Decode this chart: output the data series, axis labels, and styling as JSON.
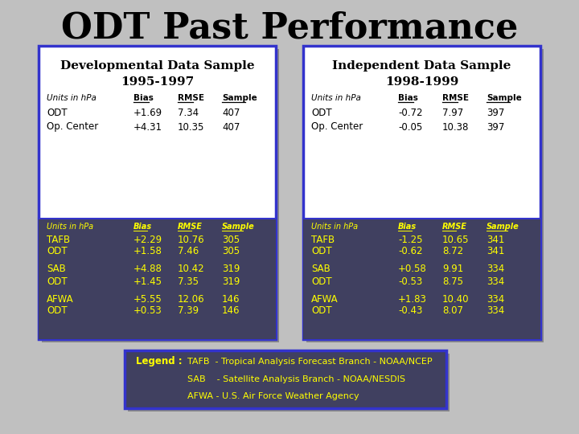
{
  "title": "ODT Past Performance",
  "title_fontsize": 32,
  "bg_color": "#c0c0c0",
  "box_bg_white": "#ffffff",
  "box_bg_dark": "#404060",
  "box_border": "#3333cc",
  "box_shadow": "#888888",
  "yellow_text": "#ffff00",
  "black_text": "#000000",
  "dev_title1": "Developmental Data Sample",
  "dev_title2": "1995-1997",
  "ind_title1": "Independent Data Sample",
  "ind_title2": "1998-1999",
  "dev_top": {
    "headers": [
      "Units in hPa",
      "Bias",
      "RMSE",
      "Sample"
    ],
    "rows": [
      [
        "ODT",
        "+1.69",
        "7.34",
        "407"
      ],
      [
        "Op. Center",
        "+4.31",
        "10.35",
        "407"
      ]
    ]
  },
  "dev_bot": {
    "headers": [
      "Units in hPa",
      "Bias",
      "RMSE",
      "Sample"
    ],
    "rows": [
      [
        "TAFB",
        "+2.29",
        "10.76",
        "305"
      ],
      [
        "ODT",
        "+1.58",
        "7.46",
        "305"
      ],
      [
        "SAB",
        "+4.88",
        "10.42",
        "319"
      ],
      [
        "ODT",
        "+1.45",
        "7.35",
        "319"
      ],
      [
        "AFWA",
        "+5.55",
        "12.06",
        "146"
      ],
      [
        "ODT",
        "+0.53",
        "7.39",
        "146"
      ]
    ]
  },
  "ind_top": {
    "headers": [
      "Units in hPa",
      "Bias",
      "RMSE",
      "Sample"
    ],
    "rows": [
      [
        "ODT",
        "-0.72",
        "7.97",
        "397"
      ],
      [
        "Op. Center",
        "-0.05",
        "10.38",
        "397"
      ]
    ]
  },
  "ind_bot": {
    "headers": [
      "Units in hPa",
      "Bias",
      "RMSE",
      "Sample"
    ],
    "rows": [
      [
        "TAFB",
        "-1.25",
        "10.65",
        "341"
      ],
      [
        "ODT",
        "-0.62",
        "8.72",
        "341"
      ],
      [
        "SAB",
        "+0.58",
        "9.91",
        "334"
      ],
      [
        "ODT",
        "-0.53",
        "8.75",
        "334"
      ],
      [
        "AFWA",
        "+1.83",
        "10.40",
        "334"
      ],
      [
        "ODT",
        "-0.43",
        "8.07",
        "334"
      ]
    ]
  },
  "legend_label": "Legend :",
  "legend_text": [
    "TAFB  - Tropical Analysis Forecast Branch - NOAA/NCEP",
    "SAB    - Satellite Analysis Branch - NOAA/NESDIS",
    "AFWA - U.S. Air Force Weather Agency"
  ]
}
